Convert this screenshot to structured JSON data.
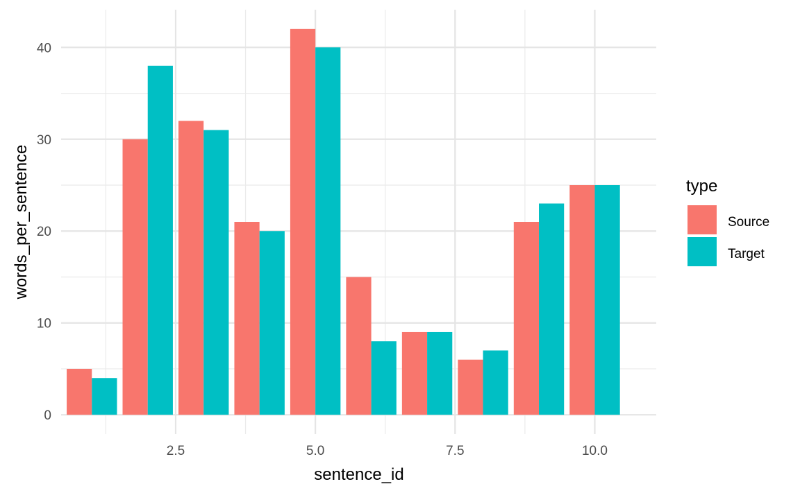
{
  "chart_data": {
    "type": "bar",
    "xlabel": "sentence_id",
    "ylabel": "words_per_sentence",
    "x": [
      1,
      2,
      3,
      4,
      5,
      6,
      7,
      8,
      9,
      10
    ],
    "series": [
      {
        "name": "Source",
        "color": "#F8766D",
        "values": [
          5,
          30,
          32,
          21,
          42,
          15,
          9,
          6,
          21,
          25
        ]
      },
      {
        "name": "Target",
        "color": "#00BFC4",
        "values": [
          4,
          38,
          31,
          20,
          40,
          8,
          9,
          7,
          23,
          25
        ]
      }
    ],
    "xticks": [
      2.5,
      5.0,
      7.5,
      10.0
    ],
    "xtick_labels": [
      "2.5",
      "5.0",
      "7.5",
      "10.0"
    ],
    "yticks": [
      0,
      10,
      20,
      30,
      40
    ],
    "ytick_labels": [
      "0",
      "10",
      "20",
      "30",
      "40"
    ],
    "xlim": [
      0.45,
      11.1
    ],
    "ylim": [
      -2.1,
      44.1
    ],
    "grid": true,
    "legend": {
      "title": "type",
      "position": "right"
    }
  }
}
